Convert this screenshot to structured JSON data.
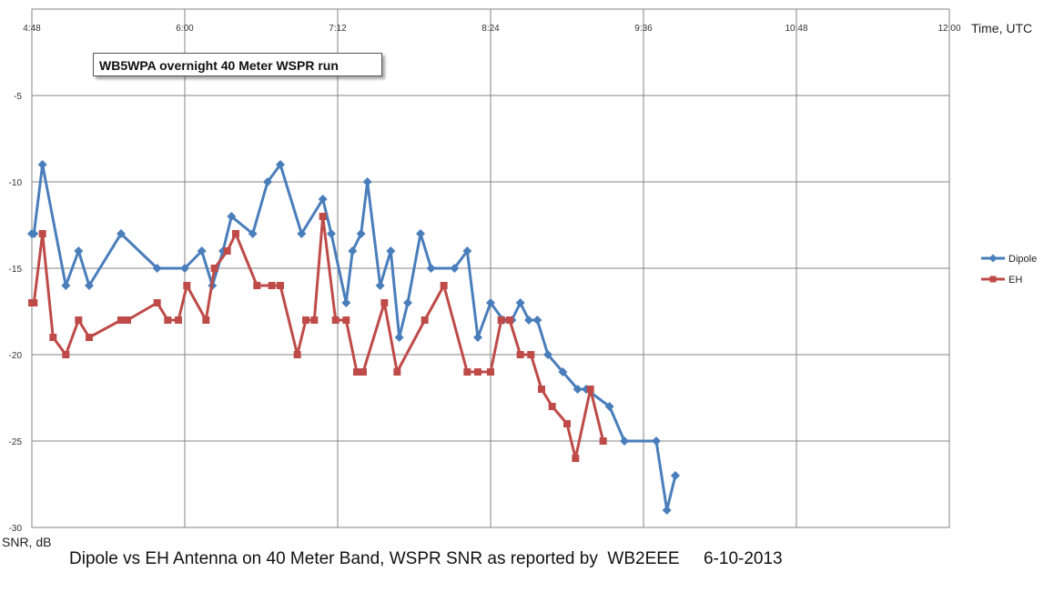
{
  "chart_data": {
    "type": "line",
    "title": "WB5WPA overnight 40 Meter WSPR run",
    "xlabel": "Time, UTC",
    "ylabel": "SNR, dB",
    "caption": "Dipole vs EH Antenna on 40 Meter Band, WSPR SNR as reported by  WB2EEE     6-10-2013",
    "x_ticks": [
      "4:48",
      "6:00",
      "7:12",
      "8:24",
      "9:36",
      "10:48",
      "12:00"
    ],
    "y_ticks": [
      "-5",
      "-10",
      "-15",
      "-20",
      "-25",
      "-30"
    ],
    "xlim": [
      "4:48",
      "12:00"
    ],
    "ylim": [
      -30,
      0
    ],
    "grid": true,
    "legend_position": "right",
    "series": [
      {
        "name": "Dipole",
        "color": "#4a7ebb",
        "marker": "diamond",
        "points": [
          [
            "4:48",
            -13
          ],
          [
            "4:49",
            -13
          ],
          [
            "4:53",
            -9
          ],
          [
            "5:04",
            -16
          ],
          [
            "5:10",
            -14
          ],
          [
            "5:15",
            -16
          ],
          [
            "5:30",
            -13
          ],
          [
            "5:47",
            -15
          ],
          [
            "6:00",
            -15
          ],
          [
            "6:08",
            -14
          ],
          [
            "6:13",
            -16
          ],
          [
            "6:18",
            -14
          ],
          [
            "6:22",
            -12
          ],
          [
            "6:32",
            -13
          ],
          [
            "6:39",
            -10
          ],
          [
            "6:45",
            -9
          ],
          [
            "6:55",
            -13
          ],
          [
            "7:05",
            -11
          ],
          [
            "7:09",
            -13
          ],
          [
            "7:16",
            -17
          ],
          [
            "7:19",
            -14
          ],
          [
            "7:23",
            -13
          ],
          [
            "7:26",
            -10
          ],
          [
            "7:32",
            -16
          ],
          [
            "7:37",
            -14
          ],
          [
            "7:41",
            -19
          ],
          [
            "7:45",
            -17
          ],
          [
            "7:51",
            -13
          ],
          [
            "7:56",
            -15
          ],
          [
            "8:07",
            -15
          ],
          [
            "8:13",
            -14
          ],
          [
            "8:18",
            -19
          ],
          [
            "8:24",
            -17
          ],
          [
            "8:30",
            -18
          ],
          [
            "8:34",
            -18
          ],
          [
            "8:38",
            -17
          ],
          [
            "8:42",
            -18
          ],
          [
            "8:46",
            -18
          ],
          [
            "8:51",
            -20
          ],
          [
            "8:58",
            -21
          ],
          [
            "9:05",
            -22
          ],
          [
            "9:09",
            -22
          ],
          [
            "9:20",
            -23
          ],
          [
            "9:27",
            -25
          ],
          [
            "9:42",
            -25
          ],
          [
            "9:47",
            -29
          ],
          [
            "9:51",
            -27
          ]
        ]
      },
      {
        "name": "EH",
        "color": "#be4b48",
        "marker": "square",
        "points": [
          [
            "4:48",
            -17
          ],
          [
            "4:49",
            -17
          ],
          [
            "4:53",
            -13
          ],
          [
            "4:58",
            -19
          ],
          [
            "5:04",
            -20
          ],
          [
            "5:10",
            -18
          ],
          [
            "5:15",
            -19
          ],
          [
            "5:30",
            -18
          ],
          [
            "5:33",
            -18
          ],
          [
            "5:47",
            -17
          ],
          [
            "5:52",
            -18
          ],
          [
            "5:57",
            -18
          ],
          [
            "6:01",
            -16
          ],
          [
            "6:10",
            -18
          ],
          [
            "6:14",
            -15
          ],
          [
            "6:20",
            -14
          ],
          [
            "6:24",
            -13
          ],
          [
            "6:34",
            -16
          ],
          [
            "6:41",
            -16
          ],
          [
            "6:45",
            -16
          ],
          [
            "6:53",
            -20
          ],
          [
            "6:57",
            -18
          ],
          [
            "7:01",
            -18
          ],
          [
            "7:05",
            -12
          ],
          [
            "7:11",
            -18
          ],
          [
            "7:16",
            -18
          ],
          [
            "7:21",
            -21
          ],
          [
            "7:24",
            -21
          ],
          [
            "7:34",
            -17
          ],
          [
            "7:40",
            -21
          ],
          [
            "7:53",
            -18
          ],
          [
            "8:02",
            -16
          ],
          [
            "8:13",
            -21
          ],
          [
            "8:18",
            -21
          ],
          [
            "8:24",
            -21
          ],
          [
            "8:29",
            -18
          ],
          [
            "8:33",
            -18
          ],
          [
            "8:38",
            -20
          ],
          [
            "8:43",
            -20
          ],
          [
            "8:48",
            -22
          ],
          [
            "8:53",
            -23
          ],
          [
            "9:00",
            -24
          ],
          [
            "9:04",
            -26
          ],
          [
            "9:11",
            -22
          ],
          [
            "9:17",
            -25
          ]
        ]
      }
    ]
  }
}
